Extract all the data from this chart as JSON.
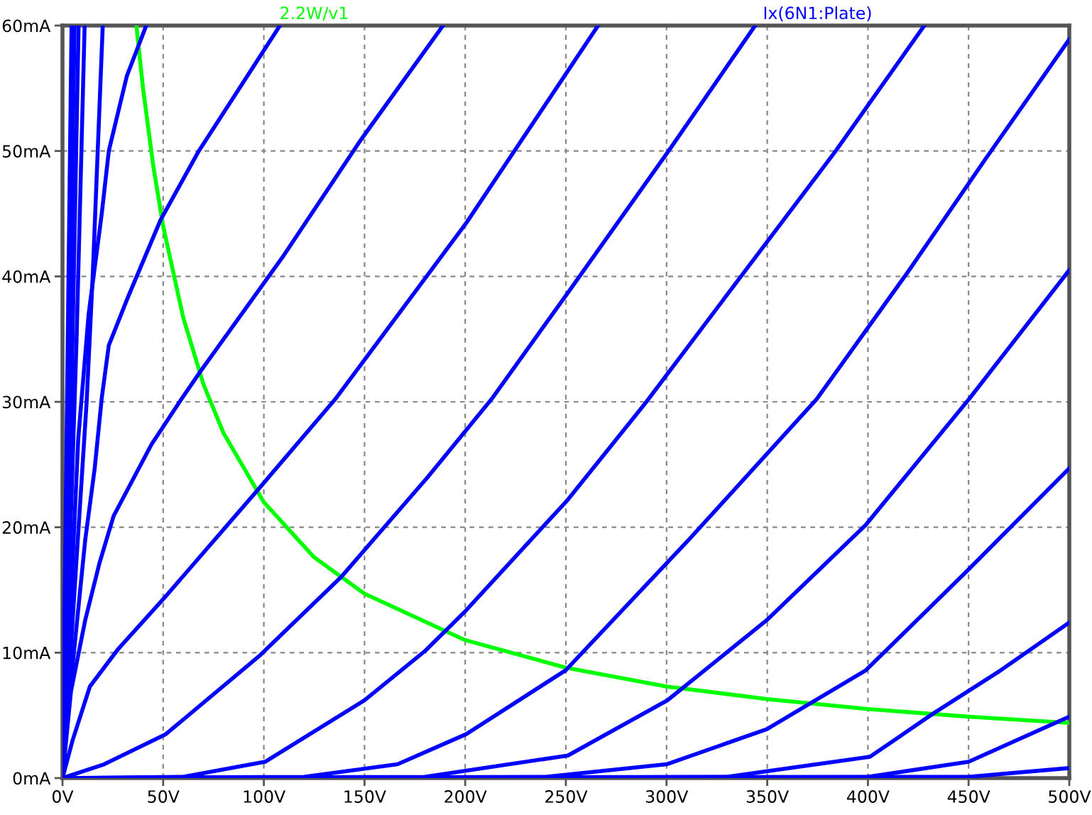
{
  "chart_data": {
    "type": "line",
    "xlim": [
      0,
      500
    ],
    "ylim": [
      0,
      60
    ],
    "xticks": [
      {
        "value": 0,
        "label": "0V"
      },
      {
        "value": 50,
        "label": "50V"
      },
      {
        "value": 100,
        "label": "100V"
      },
      {
        "value": 150,
        "label": "150V"
      },
      {
        "value": 200,
        "label": "200V"
      },
      {
        "value": 250,
        "label": "250V"
      },
      {
        "value": 300,
        "label": "300V"
      },
      {
        "value": 350,
        "label": "350V"
      },
      {
        "value": 400,
        "label": "400V"
      },
      {
        "value": 450,
        "label": "450V"
      },
      {
        "value": 500,
        "label": "500V"
      }
    ],
    "yticks": [
      {
        "value": 0,
        "label": "0mA"
      },
      {
        "value": 10,
        "label": "10mA"
      },
      {
        "value": 20,
        "label": "20mA"
      },
      {
        "value": 30,
        "label": "30mA"
      },
      {
        "value": 40,
        "label": "40mA"
      },
      {
        "value": 50,
        "label": "50mA"
      },
      {
        "value": 60,
        "label": "60mA"
      }
    ],
    "grid": true,
    "legend": "top",
    "line_style": "solid",
    "marker": "none",
    "series": [
      {
        "name": "2.2W/v1",
        "color": "#00ff00",
        "x": [
          36.7,
          40,
          45,
          50,
          60,
          70,
          80,
          100,
          125,
          150,
          200,
          250,
          300,
          350,
          400,
          450,
          500
        ],
        "values": [
          60,
          55,
          48.9,
          44,
          36.7,
          31.4,
          27.5,
          22,
          17.6,
          14.7,
          11,
          8.8,
          7.3,
          6.3,
          5.5,
          4.9,
          4.4
        ]
      },
      {
        "name": "Ix(6N1:Plate)",
        "color": "#0000ff",
        "x": [
          0,
          1.5,
          3,
          4.5
        ],
        "values": [
          0,
          20,
          40,
          60
        ]
      },
      {
        "color": "#0000ff",
        "x": [
          0,
          2,
          4,
          6
        ],
        "values": [
          0,
          20,
          40,
          60
        ]
      },
      {
        "color": "#0000ff",
        "x": [
          0,
          2.5,
          5,
          8
        ],
        "values": [
          0,
          15,
          35,
          60
        ]
      },
      {
        "color": "#0000ff",
        "x": [
          0,
          3,
          7,
          11
        ],
        "values": [
          0,
          15,
          35,
          60
        ]
      },
      {
        "color": "#0000ff",
        "x": [
          0,
          4,
          8,
          12,
          15,
          17.5,
          20
        ],
        "values": [
          0,
          10,
          20,
          30,
          40,
          50,
          60
        ]
      },
      {
        "color": "#0000ff",
        "x": [
          0,
          3,
          7.8,
          13,
          19.5,
          23,
          32,
          41.6
        ],
        "values": [
          0,
          10,
          27,
          37,
          45,
          50,
          56,
          60
        ]
      },
      {
        "color": "#0000ff",
        "x": [
          0,
          1.9,
          6.6,
          11.3,
          16,
          19.5,
          23,
          32.4,
          48.7,
          67.7,
          108
        ],
        "values": [
          0,
          4,
          11.5,
          19,
          24.7,
          30.3,
          34.5,
          38.3,
          44.5,
          50,
          60
        ]
      },
      {
        "color": "#0000ff",
        "x": [
          0,
          4.2,
          11.3,
          18.3,
          25.4,
          44.2,
          59.4,
          68.4,
          110,
          147.8,
          189
        ],
        "values": [
          0,
          6.9,
          12.6,
          17.1,
          20.9,
          26.6,
          30.3,
          32.4,
          41.7,
          50.8,
          60
        ]
      },
      {
        "color": "#0000ff",
        "x": [
          0,
          5,
          13.6,
          27.7,
          51.3,
          98.2,
          135.9,
          200.7,
          266
        ],
        "values": [
          0,
          3,
          7.3,
          10.3,
          14.5,
          23.2,
          30.3,
          44.3,
          60
        ]
      },
      {
        "color": "#0000ff",
        "x": [
          0,
          20.7,
          51.3,
          98.2,
          138.2,
          181.4,
          213.5,
          251,
          301,
          344
        ],
        "values": [
          0,
          1.1,
          3.5,
          9.8,
          16,
          24,
          30.3,
          38.7,
          50,
          60
        ]
      },
      {
        "color": "#0000ff",
        "x": [
          0,
          60,
          100.6,
          150,
          180.5,
          199.4,
          251,
          290,
          336,
          384,
          428
        ],
        "values": [
          0,
          0.1,
          1.3,
          6.2,
          10.2,
          13.2,
          22.2,
          30,
          39.8,
          50,
          60
        ]
      },
      {
        "color": "#0000ff",
        "x": [
          0,
          120,
          166.4,
          200.5,
          249.9,
          311,
          374.5,
          419.6,
          457.7,
          500
        ],
        "values": [
          0,
          0.1,
          1.1,
          3.5,
          8.6,
          19,
          30.2,
          40.3,
          49.2,
          58.9
        ]
      },
      {
        "color": "#0000ff",
        "x": [
          0,
          180,
          251,
          300.4,
          349.8,
          399,
          450.6,
          500
        ],
        "values": [
          0,
          0.1,
          1.8,
          6.2,
          12.6,
          20.2,
          30.3,
          40.5
        ]
      },
      {
        "color": "#0000ff",
        "x": [
          0,
          240,
          300,
          349.8,
          399,
          448.5,
          500
        ],
        "values": [
          0,
          0.1,
          1.1,
          3.9,
          8.6,
          16.4,
          24.7
        ]
      },
      {
        "color": "#0000ff",
        "x": [
          0,
          330,
          401,
          432,
          466,
          500
        ],
        "values": [
          0,
          0.1,
          1.7,
          5.1,
          8.6,
          12.4
        ]
      },
      {
        "color": "#0000ff",
        "x": [
          0,
          400,
          450,
          500
        ],
        "values": [
          0,
          0.1,
          1.3,
          4.9
        ]
      },
      {
        "color": "#0000ff",
        "x": [
          0,
          450,
          500
        ],
        "values": [
          0,
          0.1,
          0.8
        ]
      }
    ]
  }
}
